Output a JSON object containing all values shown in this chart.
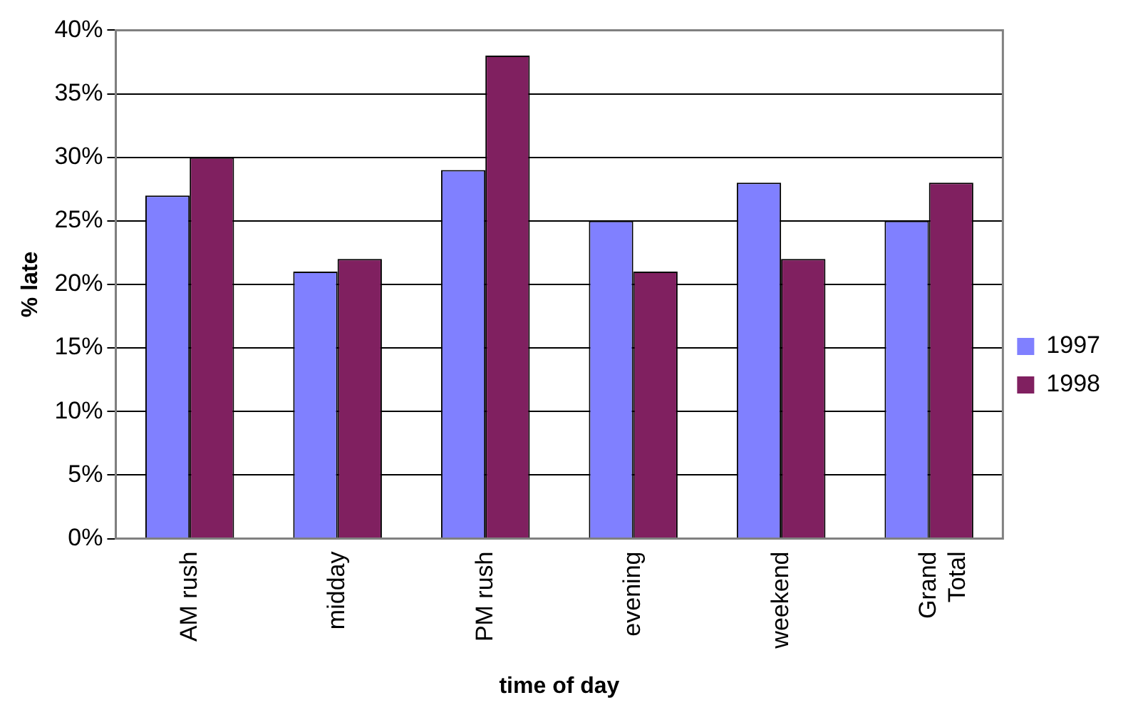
{
  "chart_data": {
    "type": "bar",
    "xlabel": "time of day",
    "ylabel": "% late",
    "categories": [
      "AM rush",
      "midday",
      "PM rush",
      "evening",
      "weekend",
      "Grand Total"
    ],
    "series": [
      {
        "name": "1997",
        "color": "#8080ff",
        "values": [
          27,
          21,
          29,
          25,
          28,
          25
        ]
      },
      {
        "name": "1998",
        "color": "#802060",
        "values": [
          30,
          22,
          38,
          21,
          22,
          28
        ]
      }
    ],
    "ylim": [
      0,
      40
    ],
    "yticks": [
      {
        "value": 0,
        "label": "0%"
      },
      {
        "value": 5,
        "label": "5%"
      },
      {
        "value": 10,
        "label": "10%"
      },
      {
        "value": 15,
        "label": "15%"
      },
      {
        "value": 20,
        "label": "20%"
      },
      {
        "value": 25,
        "label": "25%"
      },
      {
        "value": 30,
        "label": "30%"
      },
      {
        "value": 35,
        "label": "35%"
      },
      {
        "value": 40,
        "label": "40%"
      }
    ],
    "grid": "y",
    "legend": "right"
  }
}
